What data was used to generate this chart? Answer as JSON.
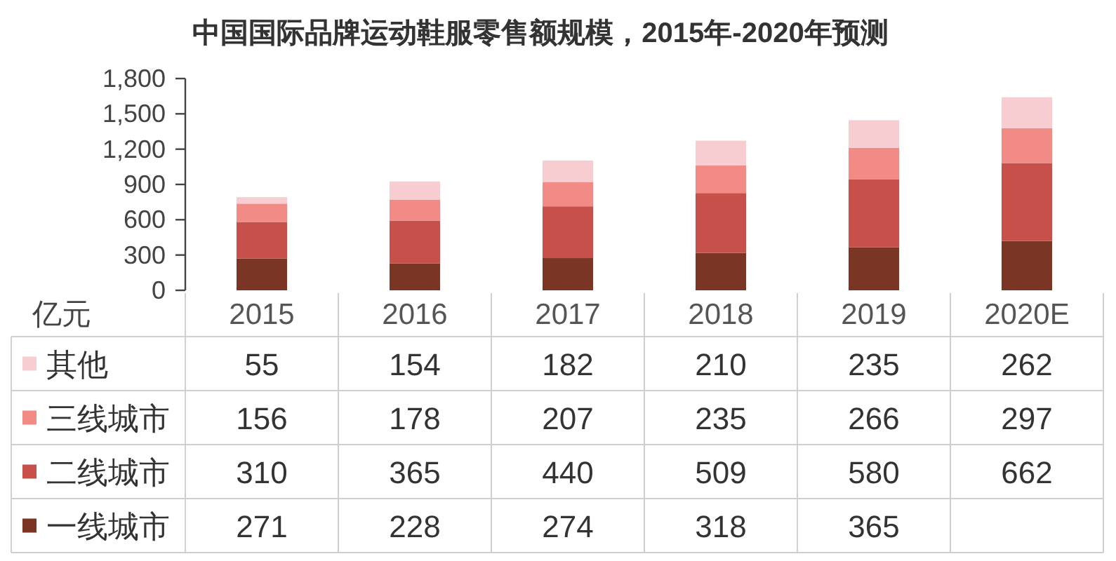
{
  "chart_data": {
    "type": "bar",
    "stacked": true,
    "title": "中国国际品牌运动鞋服零售额规模，2015年-2020年预测",
    "ylabel": "亿元",
    "legend": "bottom",
    "categories": [
      "2015",
      "2016",
      "2017",
      "2018",
      "2019",
      "2020E"
    ],
    "ylim": [
      0,
      1800
    ],
    "yticks": [
      0,
      300,
      600,
      900,
      {
        "value": 1200,
        "label": "1,200"
      },
      {
        "value": 1500,
        "label": "1,500"
      },
      {
        "value": 1800,
        "label": "1,800"
      }
    ],
    "series": [
      {
        "name": "一线城市",
        "color": "#7b3524",
        "values": [
          271,
          228,
          274,
          318,
          365,
          420
        ],
        "value_labels": [
          "271",
          "228",
          "274",
          "318",
          "365",
          null
        ]
      },
      {
        "name": "二线城市",
        "color": "#c8504a",
        "values": [
          310,
          365,
          440,
          509,
          580,
          662
        ],
        "value_labels": [
          "310",
          "365",
          "440",
          "509",
          "580",
          "662"
        ]
      },
      {
        "name": "三线城市",
        "color": "#f28b86",
        "values": [
          156,
          178,
          207,
          235,
          266,
          297
        ],
        "value_labels": [
          "156",
          "178",
          "207",
          "235",
          "266",
          "297"
        ]
      },
      {
        "name": "其他",
        "color": "#f7cdd1",
        "values": [
          55,
          154,
          182,
          210,
          235,
          262
        ],
        "value_labels": [
          "55",
          "154",
          "182",
          "210",
          "235",
          "262"
        ]
      }
    ]
  }
}
